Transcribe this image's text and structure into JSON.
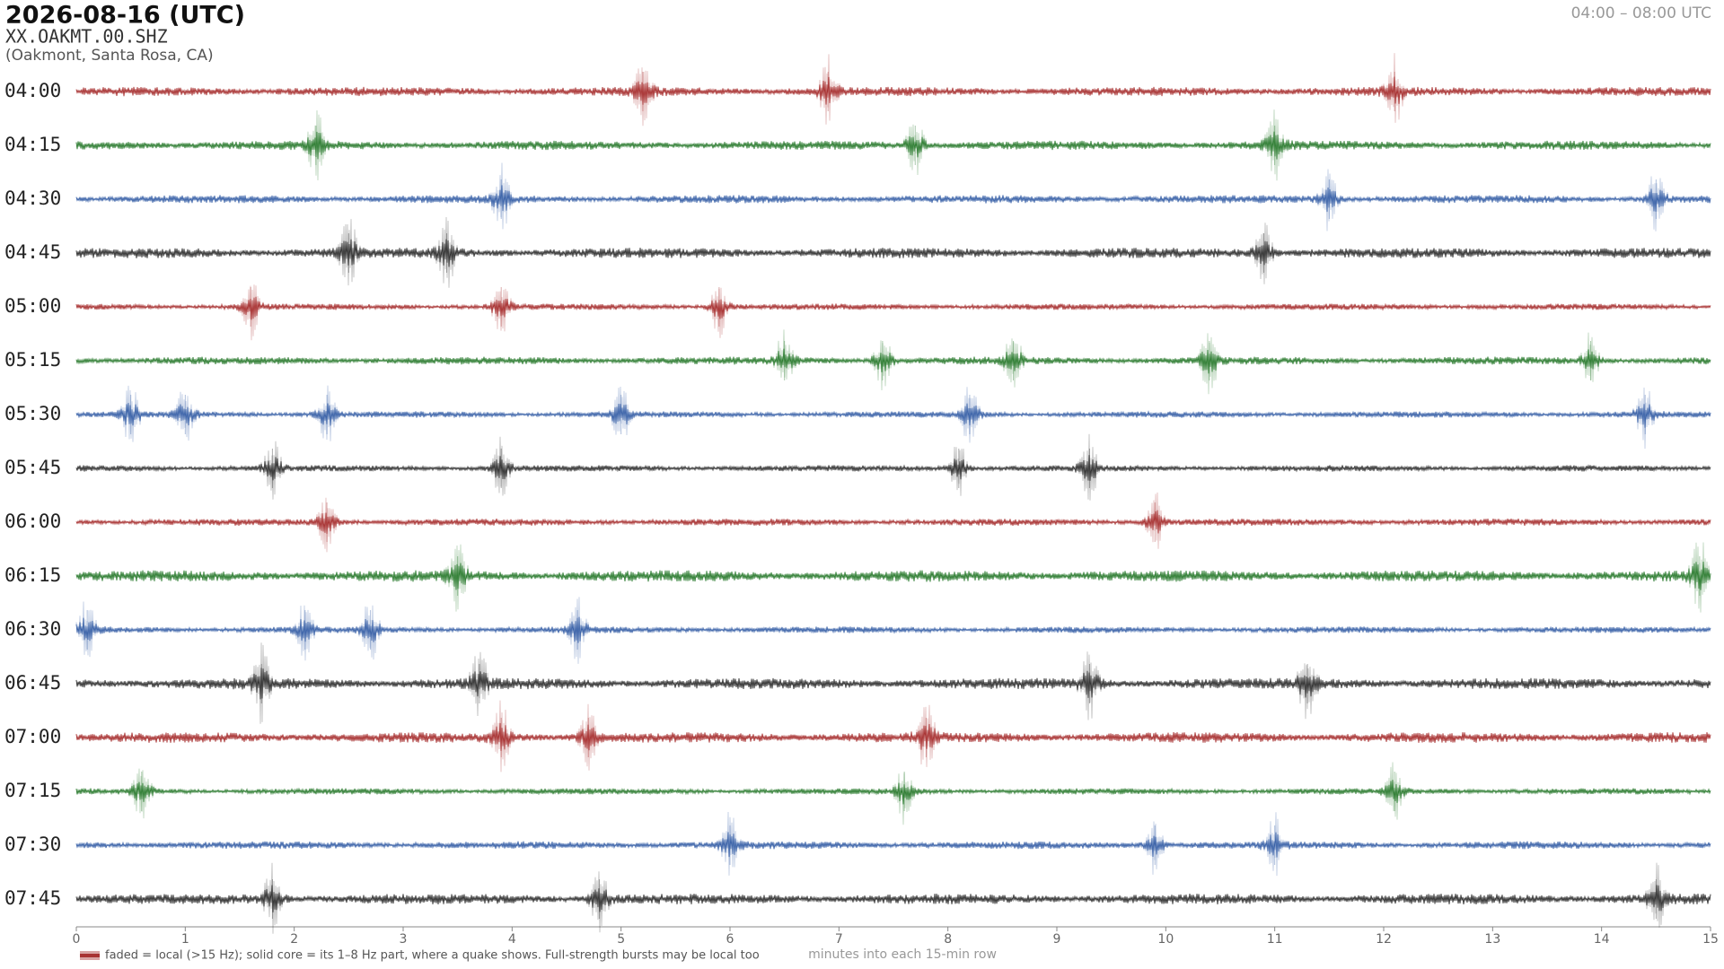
{
  "chart_data": {
    "type": "helicorder",
    "title": "2026-08-16  (UTC)",
    "station": "XX.OAKMT.00.SHZ",
    "location": "(Oakmont, Santa Rosa, CA)",
    "time_range": "04:00 – 08:00 UTC",
    "xlabel": "minutes into each 15-min row",
    "legend": "faded = local (>15 Hz); solid core = its 1–8 Hz part, where a quake shows. Full-strength bursts may be local too",
    "legend_color": "#a83232",
    "xlim": [
      0,
      15
    ],
    "xticks": [
      0,
      1,
      2,
      3,
      4,
      5,
      6,
      7,
      8,
      9,
      10,
      11,
      12,
      13,
      14,
      15
    ],
    "rows": [
      {
        "name": "04:00",
        "color": "#a83232",
        "events": [
          5.2,
          6.9,
          12.1
        ]
      },
      {
        "name": "04:15",
        "color": "#2e7d32",
        "events": [
          2.2,
          7.7,
          11.0
        ]
      },
      {
        "name": "04:30",
        "color": "#3a62a8",
        "events": [
          3.9,
          11.5,
          14.5
        ]
      },
      {
        "name": "04:45",
        "color": "#333333",
        "events": [
          2.5,
          3.4,
          10.9
        ]
      },
      {
        "name": "05:00",
        "color": "#a83232",
        "events": [
          1.6,
          3.9,
          5.9
        ]
      },
      {
        "name": "05:15",
        "color": "#2e7d32",
        "events": [
          6.5,
          7.4,
          8.6,
          10.4,
          13.9
        ]
      },
      {
        "name": "05:30",
        "color": "#3a62a8",
        "events": [
          0.5,
          1.0,
          2.3,
          5.0,
          8.2,
          14.4
        ]
      },
      {
        "name": "05:45",
        "color": "#333333",
        "events": [
          1.8,
          3.9,
          8.1,
          9.3
        ]
      },
      {
        "name": "06:00",
        "color": "#a83232",
        "events": [
          2.3,
          9.9
        ]
      },
      {
        "name": "06:15",
        "color": "#2e7d32",
        "events": [
          3.5,
          14.9
        ]
      },
      {
        "name": "06:30",
        "color": "#3a62a8",
        "events": [
          0.1,
          2.1,
          2.7,
          4.6
        ]
      },
      {
        "name": "06:45",
        "color": "#333333",
        "events": [
          1.7,
          3.7,
          9.3,
          11.3
        ]
      },
      {
        "name": "07:00",
        "color": "#a83232",
        "events": [
          3.9,
          4.7,
          7.8
        ]
      },
      {
        "name": "07:15",
        "color": "#2e7d32",
        "events": [
          0.6,
          7.6,
          12.1
        ]
      },
      {
        "name": "07:30",
        "color": "#3a62a8",
        "events": [
          6.0,
          9.9,
          11.0
        ]
      },
      {
        "name": "07:45",
        "color": "#333333",
        "events": [
          1.8,
          4.8,
          14.5
        ]
      }
    ]
  }
}
